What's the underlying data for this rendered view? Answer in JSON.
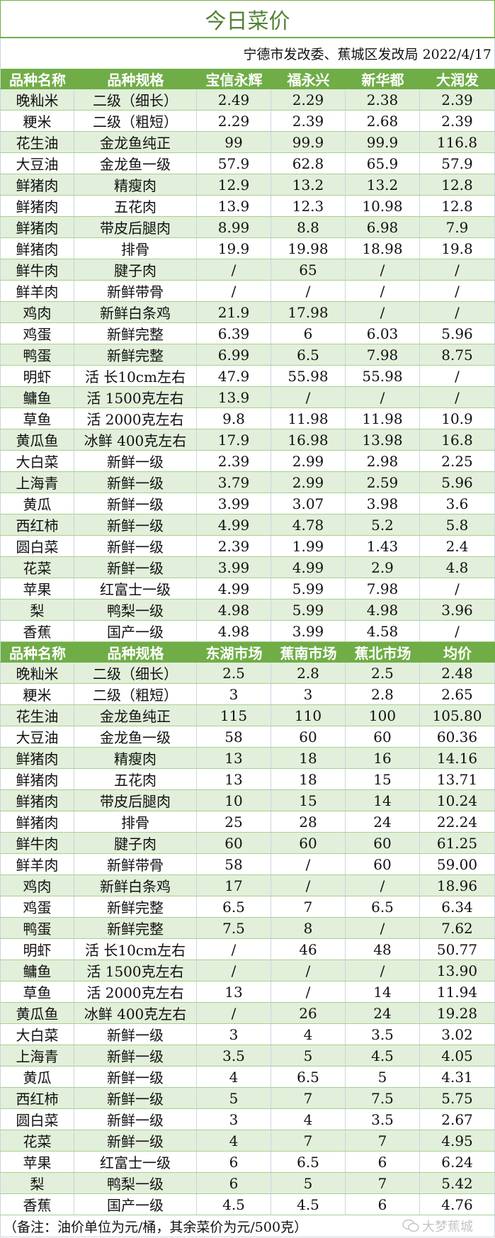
{
  "title": "今日菜价",
  "subtitle": "宁德市发改委、蕉城区发改局 2022/4/17",
  "colors": {
    "header_bg": "#70ad47",
    "alt_row": "#e2efda",
    "title": "#548235"
  },
  "tables": [
    {
      "headers": [
        "品种名称",
        "品种规格",
        "宝信永辉",
        "福永兴",
        "新华都",
        "大润发"
      ],
      "rows": [
        [
          "晚籼米",
          "二级（细长）",
          "2.49",
          "2.29",
          "2.38",
          "2.39"
        ],
        [
          "粳米",
          "二级（粗短）",
          "2.29",
          "2.39",
          "2.68",
          "2.39"
        ],
        [
          "花生油",
          "金龙鱼纯正",
          "99",
          "99.9",
          "99.9",
          "116.8"
        ],
        [
          "大豆油",
          "金龙鱼一级",
          "57.9",
          "62.8",
          "65.9",
          "57.9"
        ],
        [
          "鲜猪肉",
          "精瘦肉",
          "12.9",
          "13.2",
          "13.2",
          "12.8"
        ],
        [
          "鲜猪肉",
          "五花肉",
          "13.9",
          "12.3",
          "10.98",
          "12.8"
        ],
        [
          "鲜猪肉",
          "带皮后腿肉",
          "8.99",
          "8.8",
          "6.98",
          "7.9"
        ],
        [
          "鲜猪肉",
          "排骨",
          "19.9",
          "19.98",
          "18.98",
          "19.8"
        ],
        [
          "鲜牛肉",
          "腱子肉",
          "/",
          "65",
          "/",
          "/"
        ],
        [
          "鲜羊肉",
          "新鲜带骨",
          "/",
          "/",
          "/",
          "/"
        ],
        [
          "鸡肉",
          "新鲜白条鸡",
          "21.9",
          "17.98",
          "/",
          "/"
        ],
        [
          "鸡蛋",
          "新鲜完整",
          "6.39",
          "6",
          "6.03",
          "5.96"
        ],
        [
          "鸭蛋",
          "新鲜完整",
          "6.99",
          "6.5",
          "7.98",
          "8.75"
        ],
        [
          "明虾",
          "活 长10cm左右",
          "47.9",
          "55.98",
          "55.98",
          "/"
        ],
        [
          "鳙鱼",
          "活 1500克左右",
          "13.9",
          "/",
          "/",
          "/"
        ],
        [
          "草鱼",
          "活 2000克左右",
          "9.8",
          "11.98",
          "11.98",
          "10.9"
        ],
        [
          "黄瓜鱼",
          "冰鲜 400克左右",
          "17.9",
          "16.98",
          "13.98",
          "16.8"
        ],
        [
          "大白菜",
          "新鲜一级",
          "2.39",
          "2.99",
          "2.98",
          "2.25"
        ],
        [
          "上海青",
          "新鲜一级",
          "3.79",
          "2.99",
          "2.59",
          "5.96"
        ],
        [
          "黄瓜",
          "新鲜一级",
          "3.99",
          "3.07",
          "3.98",
          "3.6"
        ],
        [
          "西红柿",
          "新鲜一级",
          "4.99",
          "4.78",
          "5.2",
          "5.8"
        ],
        [
          "圆白菜",
          "新鲜一级",
          "2.39",
          "1.99",
          "1.43",
          "2.4"
        ],
        [
          "花菜",
          "新鲜一级",
          "3.99",
          "4.99",
          "2.9",
          "4.8"
        ],
        [
          "苹果",
          "红富士一级",
          "4.99",
          "5.99",
          "7.98",
          "/"
        ],
        [
          "梨",
          "鸭梨一级",
          "4.98",
          "5.99",
          "4.98",
          "3.96"
        ],
        [
          "香蕉",
          "国产一级",
          "4.98",
          "3.99",
          "4.58",
          "/"
        ]
      ]
    },
    {
      "headers": [
        "品种名称",
        "品种规格",
        "东湖市场",
        "蕉南市场",
        "蕉北市场",
        "均价"
      ],
      "rows": [
        [
          "晚籼米",
          "二级（细长）",
          "2.5",
          "2.8",
          "2.5",
          "2.48"
        ],
        [
          "粳米",
          "二级（粗短）",
          "3",
          "3",
          "2.8",
          "2.65"
        ],
        [
          "花生油",
          "金龙鱼纯正",
          "115",
          "110",
          "100",
          "105.80"
        ],
        [
          "大豆油",
          "金龙鱼一级",
          "58",
          "60",
          "60",
          "60.36"
        ],
        [
          "鲜猪肉",
          "精瘦肉",
          "13",
          "18",
          "16",
          "14.16"
        ],
        [
          "鲜猪肉",
          "五花肉",
          "13",
          "18",
          "15",
          "13.71"
        ],
        [
          "鲜猪肉",
          "带皮后腿肉",
          "10",
          "15",
          "14",
          "10.24"
        ],
        [
          "鲜猪肉",
          "排骨",
          "25",
          "28",
          "24",
          "22.24"
        ],
        [
          "鲜牛肉",
          "腱子肉",
          "60",
          "60",
          "60",
          "61.25"
        ],
        [
          "鲜羊肉",
          "新鲜带骨",
          "58",
          "/",
          "60",
          "59.00"
        ],
        [
          "鸡肉",
          "新鲜白条鸡",
          "17",
          "/",
          "/",
          "18.96"
        ],
        [
          "鸡蛋",
          "新鲜完整",
          "6.5",
          "7",
          "6.5",
          "6.34"
        ],
        [
          "鸭蛋",
          "新鲜完整",
          "7.5",
          "8",
          "/",
          "7.62"
        ],
        [
          "明虾",
          "活 长10cm左右",
          "/",
          "46",
          "48",
          "50.77"
        ],
        [
          "鳙鱼",
          "活 1500克左右",
          "/",
          "/",
          "/",
          "13.90"
        ],
        [
          "草鱼",
          "活 2000克左右",
          "13",
          "/",
          "14",
          "11.94"
        ],
        [
          "黄瓜鱼",
          "冰鲜 400克左右",
          "/",
          "26",
          "24",
          "19.28"
        ],
        [
          "大白菜",
          "新鲜一级",
          "3",
          "4",
          "3.5",
          "3.02"
        ],
        [
          "上海青",
          "新鲜一级",
          "3.5",
          "5",
          "4.5",
          "4.05"
        ],
        [
          "黄瓜",
          "新鲜一级",
          "4",
          "6.5",
          "5",
          "4.31"
        ],
        [
          "西红柿",
          "新鲜一级",
          "5",
          "7",
          "7.5",
          "5.75"
        ],
        [
          "圆白菜",
          "新鲜一级",
          "3",
          "4",
          "3.5",
          "2.67"
        ],
        [
          "花菜",
          "新鲜一级",
          "4",
          "7",
          "7",
          "4.95"
        ],
        [
          "苹果",
          "红富士一级",
          "6",
          "6.5",
          "6",
          "6.24"
        ],
        [
          "梨",
          "鸭梨一级",
          "6",
          "5",
          "7",
          "5.42"
        ],
        [
          "香蕉",
          "国产一级",
          "4.5",
          "4.5",
          "6",
          "4.76"
        ]
      ]
    }
  ],
  "note": "（备注：油价单位为元/桶，其余菜价为元/500克）",
  "watermark": {
    "text": "大梦蕉城",
    "icon": "wechat-icon"
  }
}
